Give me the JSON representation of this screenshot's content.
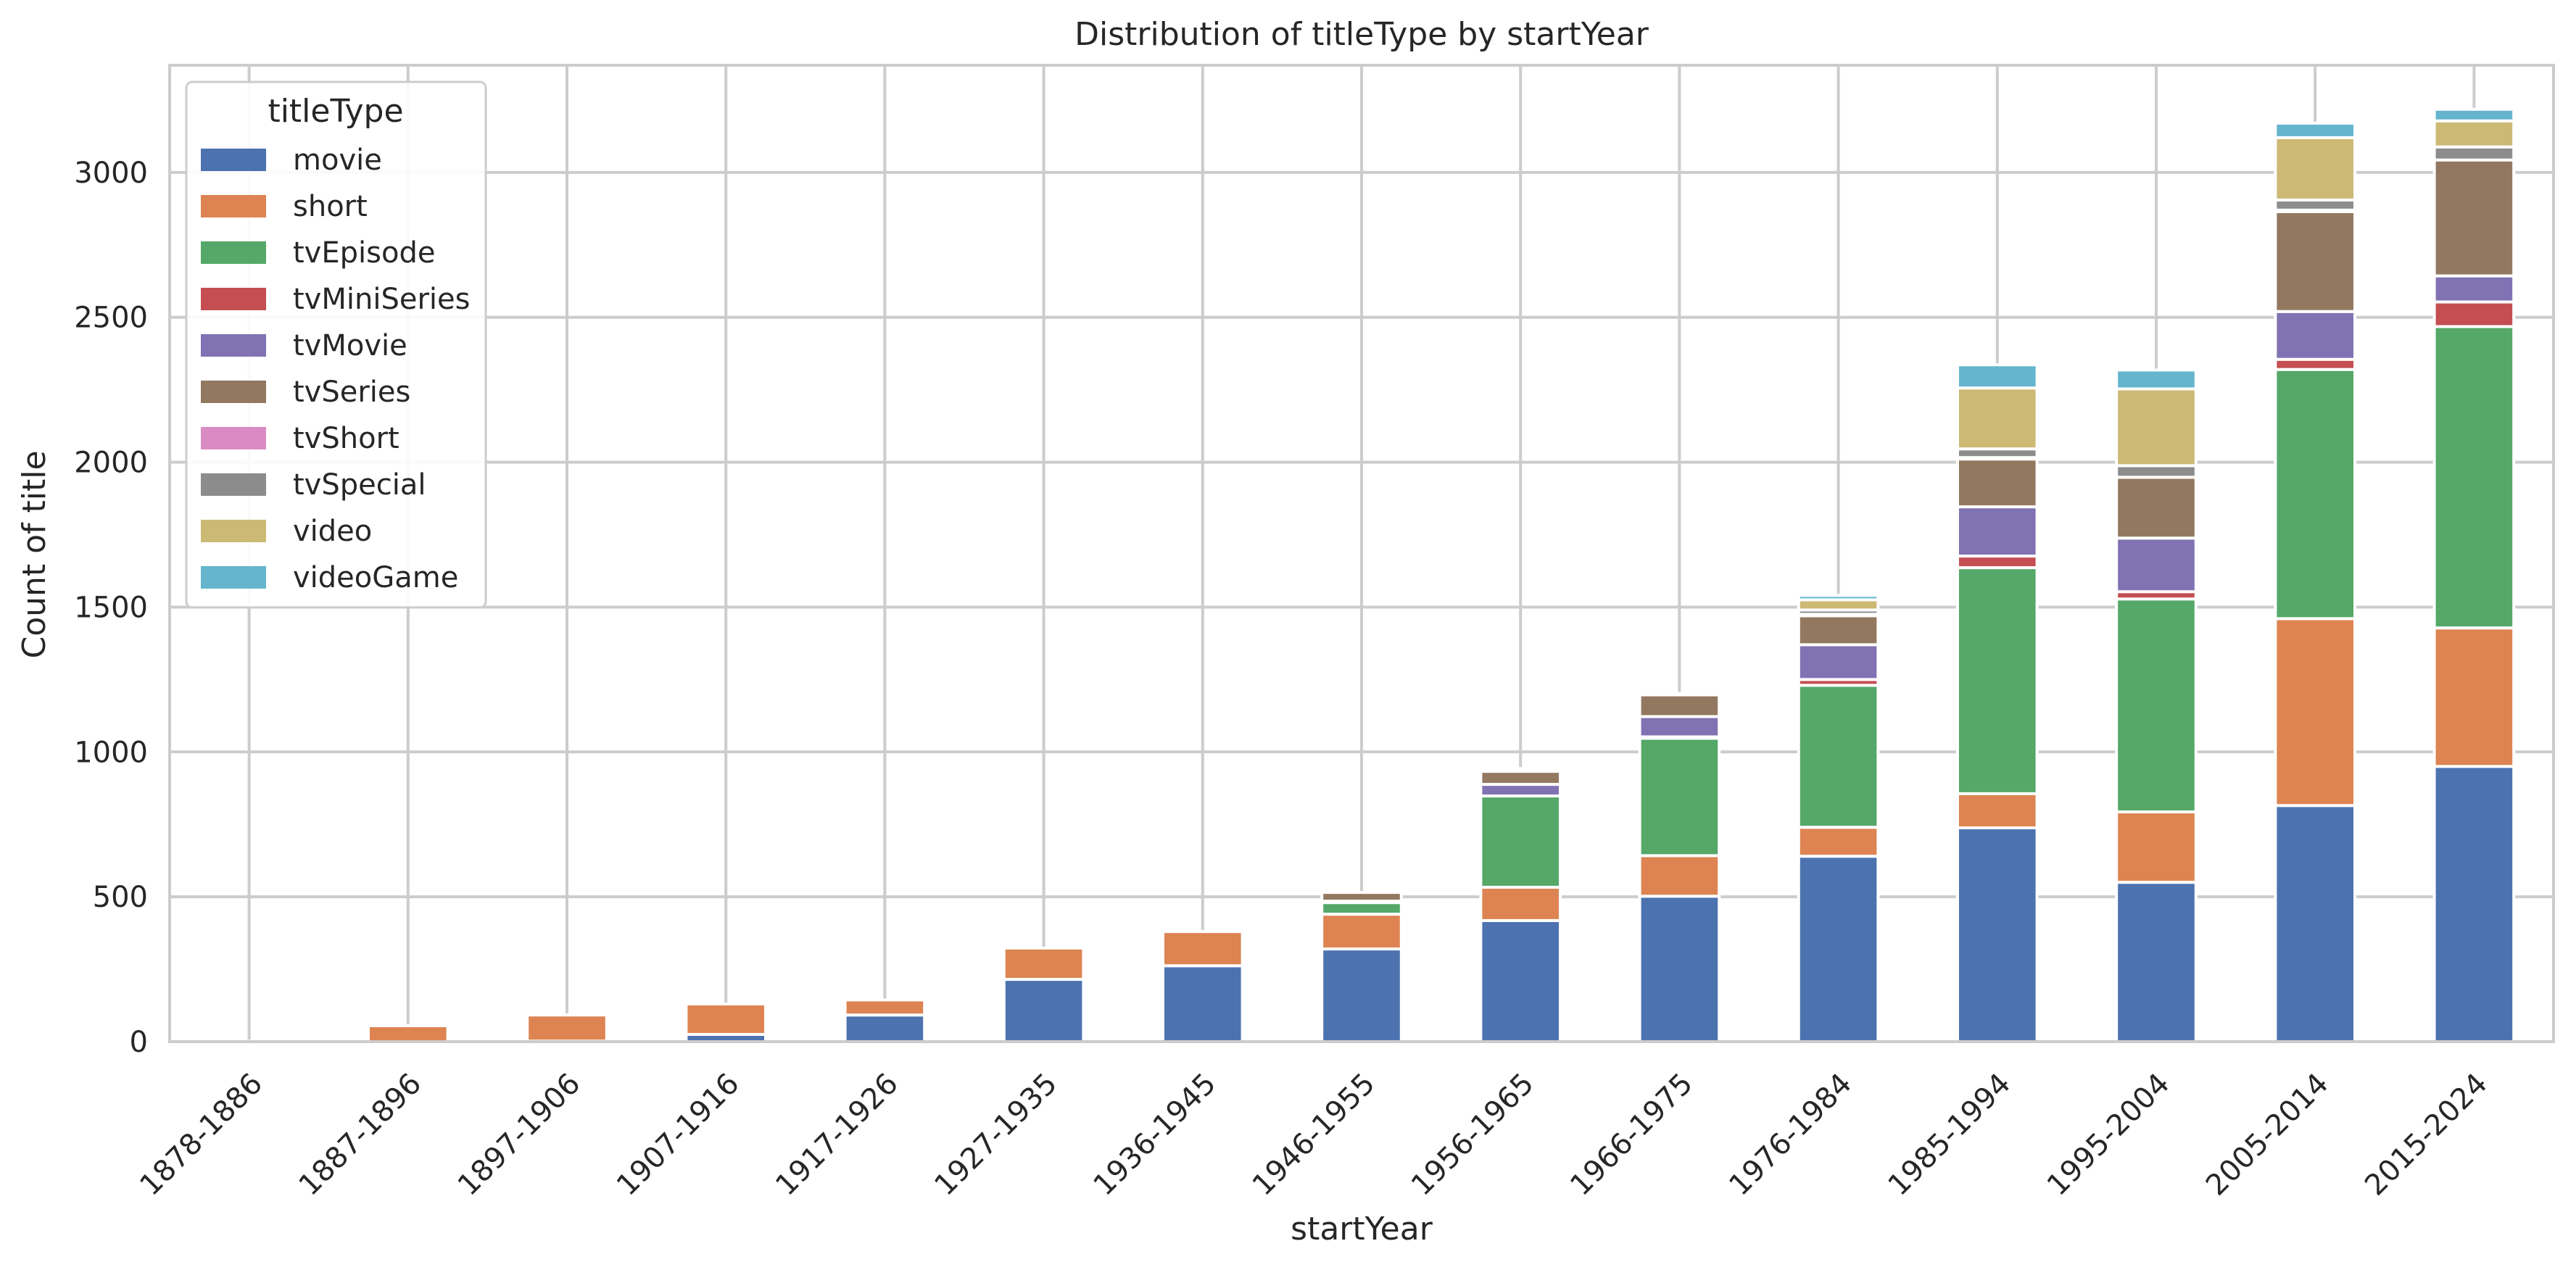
{
  "chart_data": {
    "type": "bar",
    "stacked": true,
    "title": "Distribution of titleType by startYear",
    "xlabel": "startYear",
    "ylabel": "Count of title",
    "ylim": [
      0,
      3370
    ],
    "yticks": [
      0,
      500,
      1000,
      1500,
      2000,
      2500,
      3000
    ],
    "grid": true,
    "legend": {
      "title": "titleType",
      "placement": "top-left"
    },
    "categories": [
      "1878-1886",
      "1887-1896",
      "1897-1906",
      "1907-1916",
      "1917-1926",
      "1927-1935",
      "1936-1945",
      "1946-1955",
      "1956-1965",
      "1966-1975",
      "1976-1984",
      "1985-1994",
      "1995-2004",
      "2005-2014",
      "2015-2024"
    ],
    "series": [
      {
        "name": "movie",
        "color": "#4c72b0",
        "values": [
          0,
          0,
          2,
          25,
          92,
          215,
          262,
          320,
          418,
          502,
          640,
          738,
          550,
          815,
          950
        ]
      },
      {
        "name": "short",
        "color": "#dd8452",
        "values": [
          2,
          55,
          90,
          105,
          52,
          108,
          118,
          120,
          115,
          140,
          100,
          118,
          243,
          645,
          478
        ]
      },
      {
        "name": "tvEpisode",
        "color": "#55a868",
        "values": [
          0,
          0,
          0,
          0,
          0,
          0,
          0,
          40,
          315,
          405,
          490,
          780,
          735,
          860,
          1040
        ]
      },
      {
        "name": "tvMiniSeries",
        "color": "#c44e52",
        "values": [
          0,
          0,
          0,
          0,
          0,
          0,
          0,
          0,
          0,
          5,
          20,
          40,
          25,
          35,
          85
        ]
      },
      {
        "name": "tvMovie",
        "color": "#8172b3",
        "values": [
          0,
          0,
          0,
          0,
          0,
          0,
          0,
          5,
          40,
          70,
          120,
          170,
          185,
          165,
          90
        ]
      },
      {
        "name": "tvSeries",
        "color": "#937860",
        "values": [
          0,
          0,
          0,
          0,
          0,
          0,
          0,
          30,
          45,
          75,
          100,
          165,
          210,
          345,
          400
        ]
      },
      {
        "name": "tvShort",
        "color": "#da8bc3",
        "values": [
          0,
          0,
          0,
          0,
          0,
          0,
          0,
          0,
          0,
          0,
          5,
          5,
          0,
          5,
          0
        ]
      },
      {
        "name": "tvSpecial",
        "color": "#8c8c8c",
        "values": [
          0,
          0,
          0,
          0,
          0,
          0,
          0,
          0,
          10,
          5,
          15,
          30,
          40,
          35,
          45
        ]
      },
      {
        "name": "video",
        "color": "#ccb974",
        "values": [
          0,
          0,
          0,
          0,
          0,
          0,
          0,
          0,
          0,
          0,
          35,
          210,
          265,
          215,
          90
        ]
      },
      {
        "name": "videoGame",
        "color": "#64b5cd",
        "values": [
          0,
          0,
          0,
          0,
          0,
          0,
          0,
          0,
          0,
          0,
          15,
          80,
          65,
          50,
          40
        ]
      }
    ]
  }
}
